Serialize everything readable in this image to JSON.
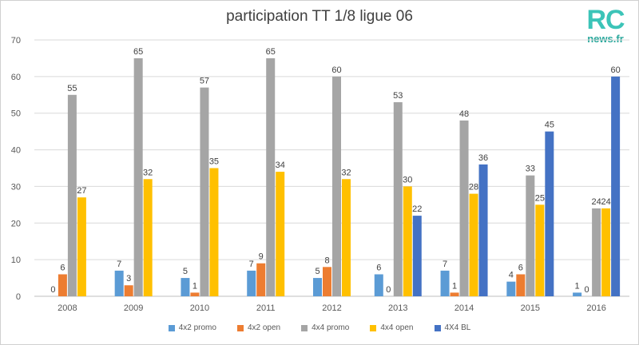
{
  "logo": {
    "main": "RC",
    "sub": "news.fr"
  },
  "colors": {
    "4x2 promo": "#5b9bd5",
    "4x2 open": "#ed7d31",
    "4x4 promo": "#a5a5a5",
    "4x4 open": "#ffc000",
    "4X4 BL": "#4472c4"
  },
  "chart_data": {
    "type": "bar",
    "title": "participation TT 1/8 ligue 06",
    "xlabel": "",
    "ylabel": "",
    "ylim": [
      0,
      70
    ],
    "yticks": [
      0,
      10,
      20,
      30,
      40,
      50,
      60,
      70
    ],
    "grid": true,
    "legend_position": "bottom",
    "categories": [
      "2008",
      "2009",
      "2010",
      "2011",
      "2012",
      "2013",
      "2014",
      "2015",
      "2016"
    ],
    "series": [
      {
        "name": "4x2 promo",
        "values": [
          0,
          7,
          5,
          7,
          5,
          6,
          7,
          4,
          1
        ]
      },
      {
        "name": "4x2 open",
        "values": [
          6,
          3,
          1,
          9,
          8,
          0,
          1,
          6,
          0
        ]
      },
      {
        "name": "4x4 promo",
        "values": [
          55,
          65,
          57,
          65,
          60,
          53,
          48,
          33,
          24
        ]
      },
      {
        "name": "4x4 open",
        "values": [
          27,
          32,
          35,
          34,
          32,
          30,
          28,
          25,
          24
        ]
      },
      {
        "name": "4X4 BL",
        "values": [
          null,
          null,
          null,
          null,
          null,
          22,
          36,
          45,
          60
        ]
      }
    ]
  }
}
